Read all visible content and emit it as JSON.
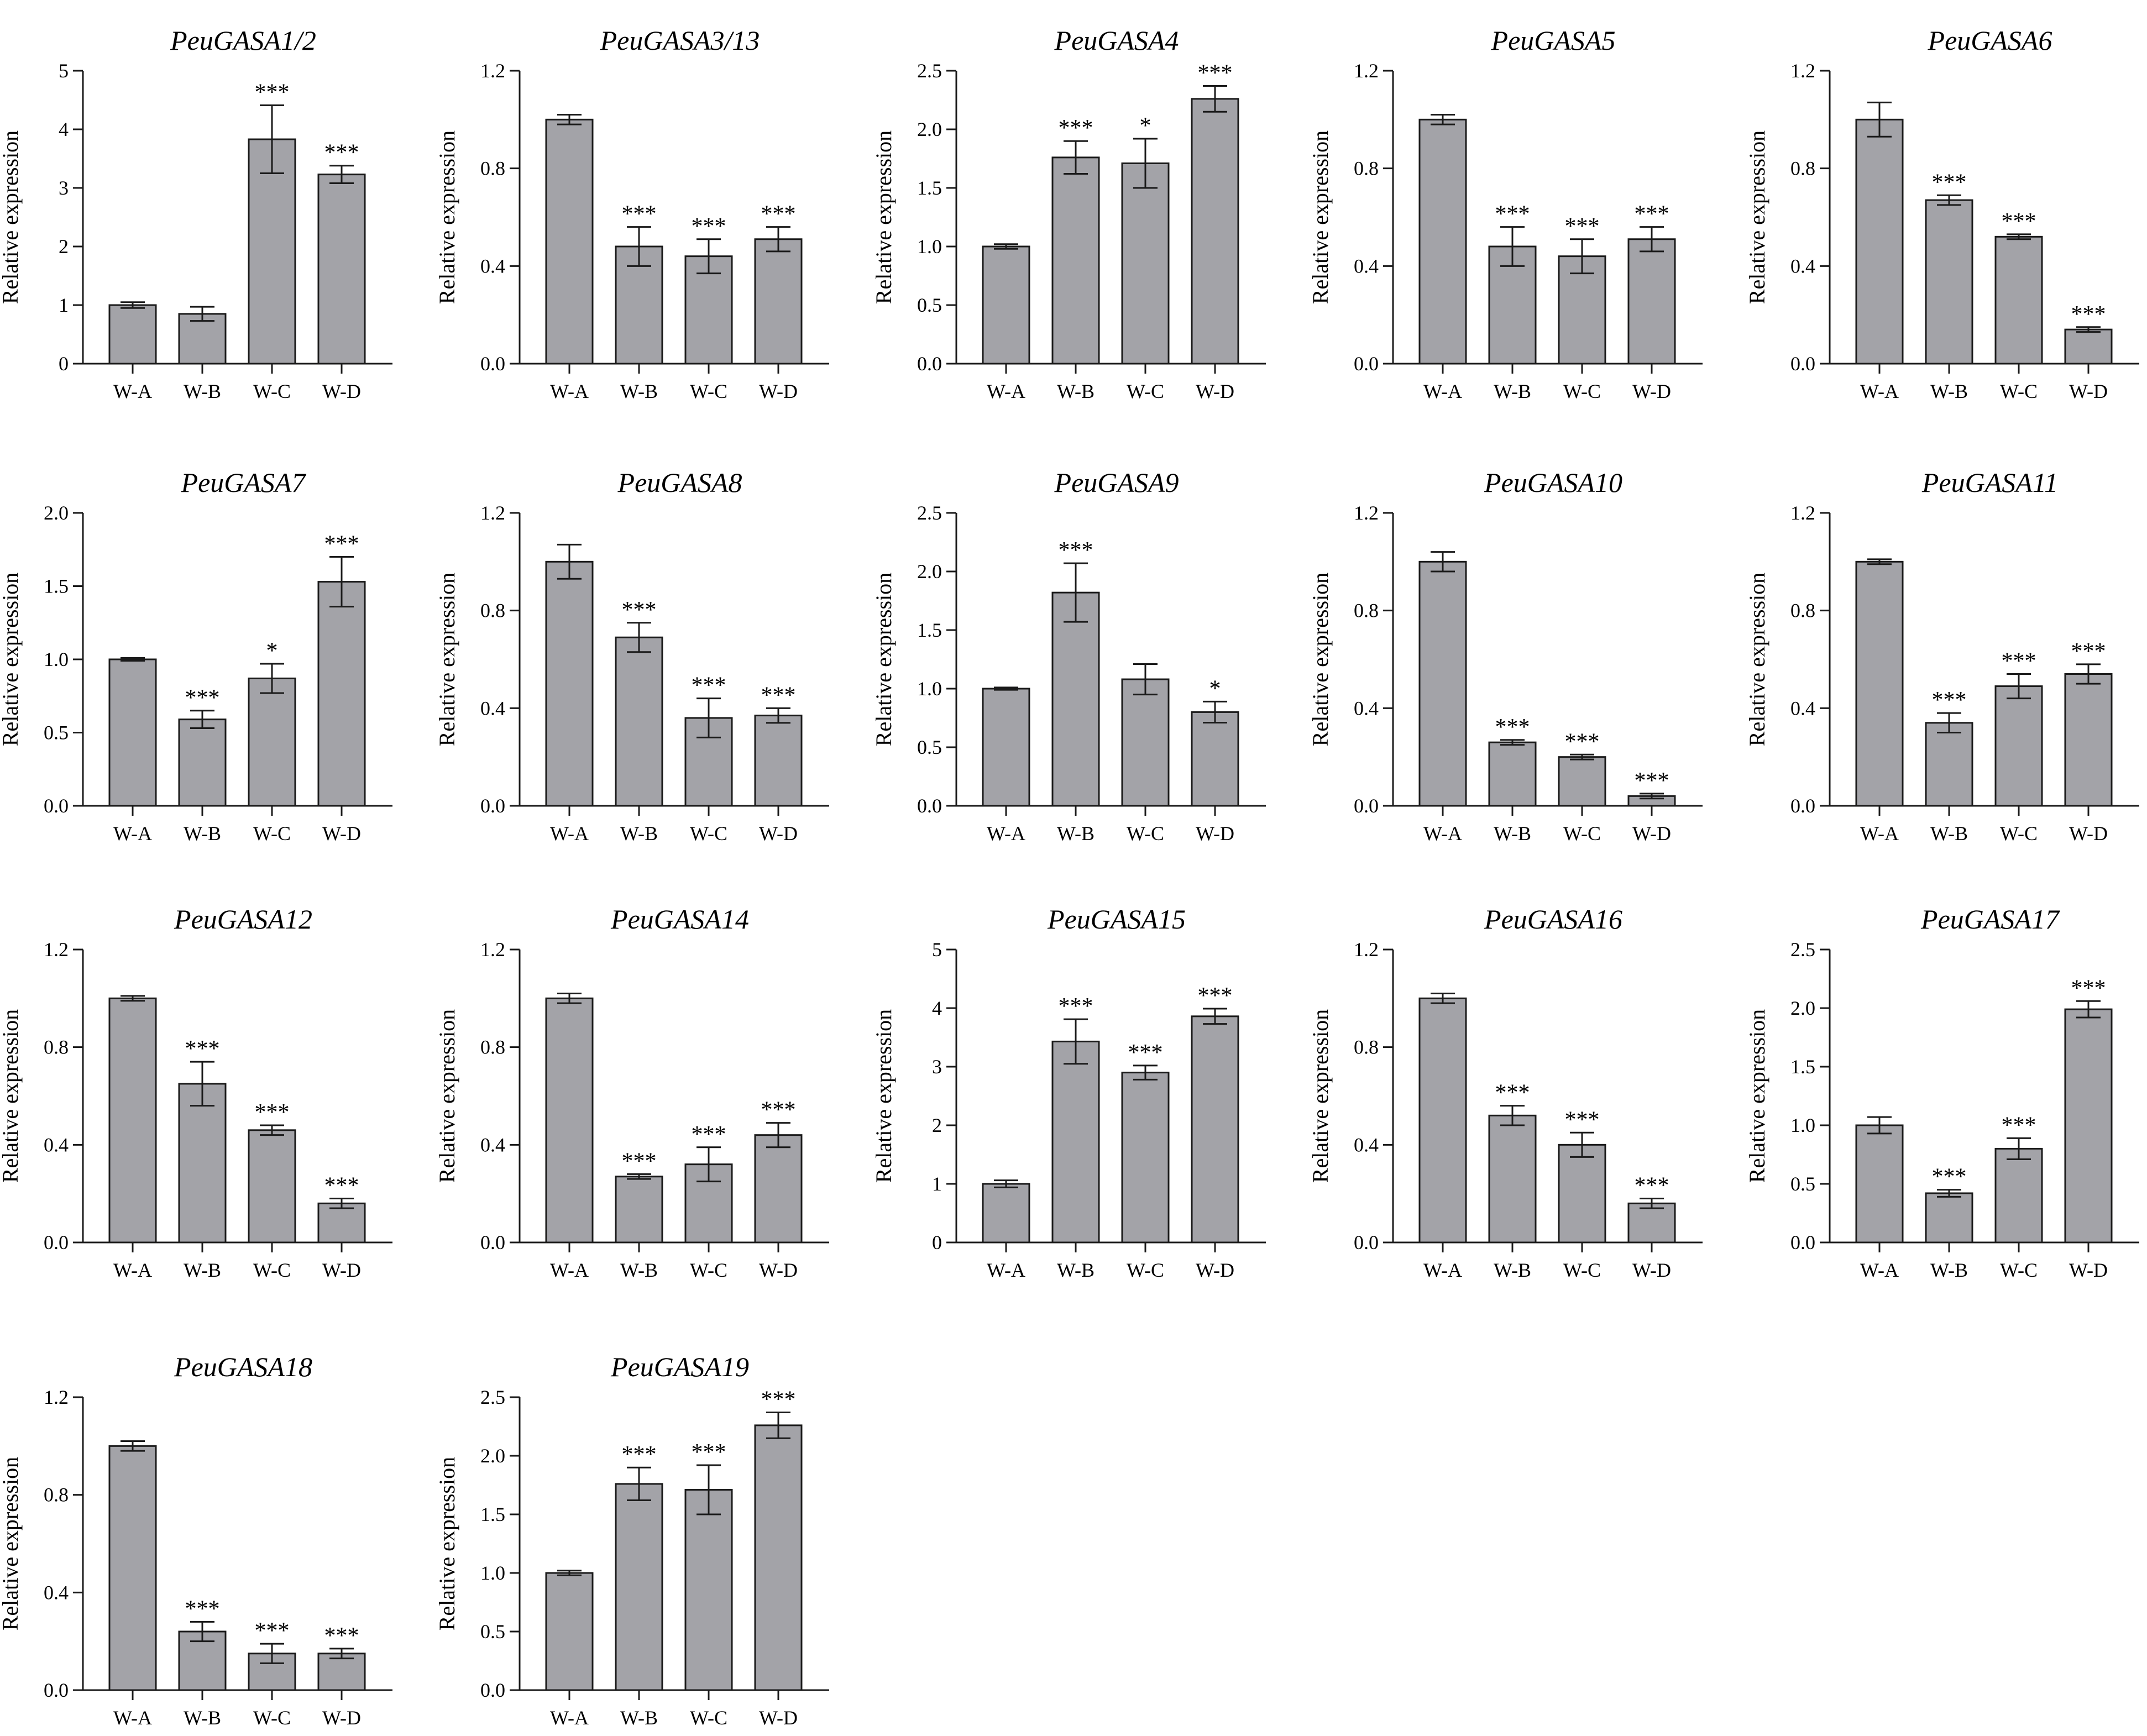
{
  "colors": {
    "bar_fill": "#a3a3a8",
    "stroke": "#1a1a1a",
    "background": "#ffffff"
  },
  "chart_data": [
    {
      "type": "bar",
      "title": "PeuGASA1/2",
      "ylabel": "Relative expression",
      "categories": [
        "W-A",
        "W-B",
        "W-C",
        "W-D"
      ],
      "values": [
        1.0,
        0.85,
        3.83,
        3.23
      ],
      "errors": [
        0.05,
        0.12,
        0.58,
        0.15
      ],
      "significance": [
        "",
        "",
        "***",
        "***"
      ],
      "ylim": [
        0,
        5
      ],
      "yticks": [
        "0",
        "1",
        "2",
        "3",
        "4",
        "5"
      ]
    },
    {
      "type": "bar",
      "title": "PeuGASA3/13",
      "ylabel": "Relative expression",
      "categories": [
        "W-A",
        "W-B",
        "W-C",
        "W-D"
      ],
      "values": [
        1.0,
        0.48,
        0.44,
        0.51
      ],
      "errors": [
        0.02,
        0.08,
        0.07,
        0.05
      ],
      "significance": [
        "",
        "***",
        "***",
        "***"
      ],
      "ylim": [
        0,
        1.2
      ],
      "yticks": [
        "0.0",
        "0.4",
        "0.8",
        "1.2"
      ]
    },
    {
      "type": "bar",
      "title": "PeuGASA4",
      "ylabel": "Relative expression",
      "categories": [
        "W-A",
        "W-B",
        "W-C",
        "W-D"
      ],
      "values": [
        1.0,
        1.76,
        1.71,
        2.26
      ],
      "errors": [
        0.02,
        0.14,
        0.21,
        0.11
      ],
      "significance": [
        "",
        "***",
        "*",
        "***"
      ],
      "ylim": [
        0,
        2.5
      ],
      "yticks": [
        "0.0",
        "0.5",
        "1.0",
        "1.5",
        "2.0",
        "2.5"
      ]
    },
    {
      "type": "bar",
      "title": "PeuGASA5",
      "ylabel": "Relative expression",
      "categories": [
        "W-A",
        "W-B",
        "W-C",
        "W-D"
      ],
      "values": [
        1.0,
        0.48,
        0.44,
        0.51
      ],
      "errors": [
        0.02,
        0.08,
        0.07,
        0.05
      ],
      "significance": [
        "",
        "***",
        "***",
        "***"
      ],
      "ylim": [
        0,
        1.2
      ],
      "yticks": [
        "0.0",
        "0.4",
        "0.8",
        "1.2"
      ]
    },
    {
      "type": "bar",
      "title": "PeuGASA6",
      "ylabel": "Relative expression",
      "categories": [
        "W-A",
        "W-B",
        "W-C",
        "W-D"
      ],
      "values": [
        1.0,
        0.67,
        0.52,
        0.14
      ],
      "errors": [
        0.07,
        0.02,
        0.01,
        0.01
      ],
      "significance": [
        "",
        "***",
        "***",
        "***"
      ],
      "ylim": [
        0,
        1.2
      ],
      "yticks": [
        "0.0",
        "0.4",
        "0.8",
        "1.2"
      ]
    },
    {
      "type": "bar",
      "title": "PeuGASA7",
      "ylabel": "Relative expression",
      "categories": [
        "W-A",
        "W-B",
        "W-C",
        "W-D"
      ],
      "values": [
        1.0,
        0.59,
        0.87,
        1.53
      ],
      "errors": [
        0.01,
        0.06,
        0.1,
        0.17
      ],
      "significance": [
        "",
        "***",
        "*",
        "***"
      ],
      "ylim": [
        0,
        2.0
      ],
      "yticks": [
        "0.0",
        "0.5",
        "1.0",
        "1.5",
        "2.0"
      ]
    },
    {
      "type": "bar",
      "title": "PeuGASA8",
      "ylabel": "Relative expression",
      "categories": [
        "W-A",
        "W-B",
        "W-C",
        "W-D"
      ],
      "values": [
        1.0,
        0.69,
        0.36,
        0.37
      ],
      "errors": [
        0.07,
        0.06,
        0.08,
        0.03
      ],
      "significance": [
        "",
        "***",
        "***",
        "***"
      ],
      "ylim": [
        0,
        1.2
      ],
      "yticks": [
        "0.0",
        "0.4",
        "0.8",
        "1.2"
      ]
    },
    {
      "type": "bar",
      "title": "PeuGASA9",
      "ylabel": "Relative expression",
      "categories": [
        "W-A",
        "W-B",
        "W-C",
        "W-D"
      ],
      "values": [
        1.0,
        1.82,
        1.08,
        0.8
      ],
      "errors": [
        0.01,
        0.25,
        0.13,
        0.09
      ],
      "significance": [
        "",
        "***",
        "",
        "*"
      ],
      "ylim": [
        0,
        2.5
      ],
      "yticks": [
        "0.0",
        "0.5",
        "1.0",
        "1.5",
        "2.0",
        "2.5"
      ]
    },
    {
      "type": "bar",
      "title": "PeuGASA10",
      "ylabel": "Relative expression",
      "categories": [
        "W-A",
        "W-B",
        "W-C",
        "W-D"
      ],
      "values": [
        1.0,
        0.26,
        0.2,
        0.04
      ],
      "errors": [
        0.04,
        0.01,
        0.01,
        0.01
      ],
      "significance": [
        "",
        "***",
        "***",
        "***"
      ],
      "ylim": [
        0,
        1.2
      ],
      "yticks": [
        "0.0",
        "0.4",
        "0.8",
        "1.2"
      ]
    },
    {
      "type": "bar",
      "title": "PeuGASA11",
      "ylabel": "Relative expression",
      "categories": [
        "W-A",
        "W-B",
        "W-C",
        "W-D"
      ],
      "values": [
        1.0,
        0.34,
        0.49,
        0.54
      ],
      "errors": [
        0.01,
        0.04,
        0.05,
        0.04
      ],
      "significance": [
        "",
        "***",
        "***",
        "***"
      ],
      "ylim": [
        0,
        1.2
      ],
      "yticks": [
        "0.0",
        "0.4",
        "0.8",
        "1.2"
      ]
    },
    {
      "type": "bar",
      "title": "PeuGASA12",
      "ylabel": "Relative expression",
      "categories": [
        "W-A",
        "W-B",
        "W-C",
        "W-D"
      ],
      "values": [
        1.0,
        0.65,
        0.46,
        0.16
      ],
      "errors": [
        0.01,
        0.09,
        0.02,
        0.02
      ],
      "significance": [
        "",
        "***",
        "***",
        "***"
      ],
      "ylim": [
        0,
        1.2
      ],
      "yticks": [
        "0.0",
        "0.4",
        "0.8",
        "1.2"
      ]
    },
    {
      "type": "bar",
      "title": "PeuGASA14",
      "ylabel": "Relative expression",
      "categories": [
        "W-A",
        "W-B",
        "W-C",
        "W-D"
      ],
      "values": [
        1.0,
        0.27,
        0.32,
        0.44
      ],
      "errors": [
        0.02,
        0.01,
        0.07,
        0.05
      ],
      "significance": [
        "",
        "***",
        "***",
        "***"
      ],
      "ylim": [
        0,
        1.2
      ],
      "yticks": [
        "0.0",
        "0.4",
        "0.8",
        "1.2"
      ]
    },
    {
      "type": "bar",
      "title": "PeuGASA15",
      "ylabel": "Relative expression",
      "categories": [
        "W-A",
        "W-B",
        "W-C",
        "W-D"
      ],
      "values": [
        1.0,
        3.43,
        2.9,
        3.86
      ],
      "errors": [
        0.06,
        0.38,
        0.12,
        0.13
      ],
      "significance": [
        "",
        "***",
        "***",
        "***"
      ],
      "ylim": [
        0,
        5
      ],
      "yticks": [
        "0",
        "1",
        "2",
        "3",
        "4",
        "5"
      ]
    },
    {
      "type": "bar",
      "title": "PeuGASA16",
      "ylabel": "Relative expression",
      "categories": [
        "W-A",
        "W-B",
        "W-C",
        "W-D"
      ],
      "values": [
        1.0,
        0.52,
        0.4,
        0.16
      ],
      "errors": [
        0.02,
        0.04,
        0.05,
        0.02
      ],
      "significance": [
        "",
        "***",
        "***",
        "***"
      ],
      "ylim": [
        0,
        1.2
      ],
      "yticks": [
        "0.0",
        "0.4",
        "0.8",
        "1.2"
      ]
    },
    {
      "type": "bar",
      "title": "PeuGASA17",
      "ylabel": "Relative expression",
      "categories": [
        "W-A",
        "W-B",
        "W-C",
        "W-D"
      ],
      "values": [
        1.0,
        0.42,
        0.8,
        1.99
      ],
      "errors": [
        0.07,
        0.03,
        0.09,
        0.07
      ],
      "significance": [
        "",
        "***",
        "***",
        "***"
      ],
      "ylim": [
        0,
        2.5
      ],
      "yticks": [
        "0.0",
        "0.5",
        "1.0",
        "1.5",
        "2.0",
        "2.5"
      ]
    },
    {
      "type": "bar",
      "title": "PeuGASA18",
      "ylabel": "Relative expression",
      "categories": [
        "W-A",
        "W-B",
        "W-C",
        "W-D"
      ],
      "values": [
        1.0,
        0.24,
        0.15,
        0.15
      ],
      "errors": [
        0.02,
        0.04,
        0.04,
        0.02
      ],
      "significance": [
        "",
        "***",
        "***",
        "***"
      ],
      "ylim": [
        0,
        1.2
      ],
      "yticks": [
        "0.0",
        "0.4",
        "0.8",
        "1.2"
      ]
    },
    {
      "type": "bar",
      "title": "PeuGASA19",
      "ylabel": "Relative expression",
      "categories": [
        "W-A",
        "W-B",
        "W-C",
        "W-D"
      ],
      "values": [
        1.0,
        1.76,
        1.71,
        2.26
      ],
      "errors": [
        0.02,
        0.14,
        0.21,
        0.11
      ],
      "significance": [
        "",
        "***",
        "***",
        "***"
      ],
      "ylim": [
        0,
        2.5
      ],
      "yticks": [
        "0.0",
        "0.5",
        "1.0",
        "1.5",
        "2.0",
        "2.5"
      ]
    }
  ]
}
